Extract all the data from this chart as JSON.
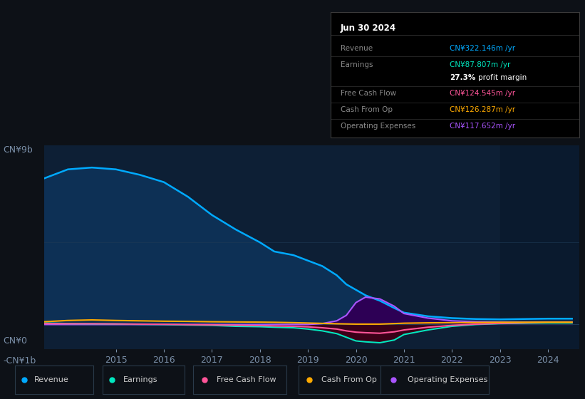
{
  "bg_color": "#0d1117",
  "plot_bg_color": "#0d1f35",
  "title": "Jun 30 2024",
  "ylabel_top": "CN¥9b",
  "ylabel_zero": "CN¥0",
  "ylabel_neg": "-CN¥1b",
  "x_years": [
    2013.5,
    2014.0,
    2014.5,
    2015.0,
    2015.5,
    2016.0,
    2016.5,
    2017.0,
    2017.5,
    2018.0,
    2018.3,
    2018.7,
    2019.0,
    2019.3,
    2019.6,
    2019.8,
    2020.0,
    2020.2,
    2020.5,
    2020.8,
    2021.0,
    2021.5,
    2022.0,
    2022.5,
    2023.0,
    2023.5,
    2024.0,
    2024.5
  ],
  "revenue": [
    8.0,
    8.5,
    8.6,
    8.5,
    8.2,
    7.8,
    7.0,
    6.0,
    5.2,
    4.5,
    4.0,
    3.8,
    3.5,
    3.2,
    2.7,
    2.2,
    1.9,
    1.6,
    1.3,
    0.9,
    0.65,
    0.45,
    0.35,
    0.3,
    0.28,
    0.3,
    0.32,
    0.32
  ],
  "earnings": [
    0.08,
    0.05,
    0.04,
    0.03,
    0.01,
    0.0,
    -0.03,
    -0.05,
    -0.1,
    -0.12,
    -0.15,
    -0.18,
    -0.25,
    -0.35,
    -0.5,
    -0.7,
    -0.9,
    -0.95,
    -1.0,
    -0.85,
    -0.55,
    -0.3,
    -0.1,
    0.0,
    0.05,
    0.07,
    0.088,
    0.088
  ],
  "free_cash_flow": [
    0.05,
    0.04,
    0.04,
    0.03,
    0.02,
    0.01,
    -0.01,
    -0.02,
    -0.04,
    -0.06,
    -0.08,
    -0.1,
    -0.13,
    -0.18,
    -0.25,
    -0.35,
    -0.42,
    -0.45,
    -0.48,
    -0.4,
    -0.3,
    -0.15,
    -0.05,
    0.02,
    0.06,
    0.09,
    0.125,
    0.125
  ],
  "cash_from_op": [
    0.15,
    0.22,
    0.25,
    0.22,
    0.2,
    0.18,
    0.17,
    0.15,
    0.14,
    0.13,
    0.12,
    0.1,
    0.08,
    0.06,
    0.04,
    0.03,
    0.02,
    0.02,
    0.02,
    0.05,
    0.07,
    0.09,
    0.1,
    0.11,
    0.12,
    0.123,
    0.126,
    0.126
  ],
  "operating_expenses": [
    0.0,
    0.0,
    0.0,
    0.0,
    0.0,
    0.0,
    0.0,
    0.0,
    0.0,
    0.0,
    0.0,
    0.0,
    0.0,
    0.05,
    0.2,
    0.5,
    1.2,
    1.5,
    1.4,
    1.0,
    0.6,
    0.35,
    0.2,
    0.15,
    0.13,
    0.12,
    0.118,
    0.118
  ],
  "revenue_color": "#00aaff",
  "revenue_fill": "#0d3055",
  "earnings_color": "#00e8c0",
  "earnings_neg_fill": "#3a0018",
  "earnings_pos_fill": "#003322",
  "free_cash_flow_color": "#ff5599",
  "free_cash_flow_neg_fill": "#3a0018",
  "cash_from_op_color": "#ffaa00",
  "op_expenses_color": "#aa55ff",
  "op_expenses_fill": "#2d0055",
  "legend": [
    {
      "label": "Revenue",
      "color": "#00aaff"
    },
    {
      "label": "Earnings",
      "color": "#00e8c0"
    },
    {
      "label": "Free Cash Flow",
      "color": "#ff5599"
    },
    {
      "label": "Cash From Op",
      "color": "#ffaa00"
    },
    {
      "label": "Operating Expenses",
      "color": "#aa55ff"
    }
  ],
  "xticks": [
    2015,
    2016,
    2017,
    2018,
    2019,
    2020,
    2021,
    2022,
    2023,
    2024
  ],
  "ylim": [
    -1.35,
    9.8
  ],
  "xlim": [
    2013.5,
    2024.65
  ],
  "grid_color": "#1e3a55",
  "tick_color": "#7a8fa8",
  "shade_start": 2023.0,
  "shade_end": 2024.65,
  "shade_color": "#0a1a2e",
  "info_rows": [
    {
      "label": "Revenue",
      "value": "CN¥322.146m /yr",
      "value_color": "#00aaff"
    },
    {
      "label": "Earnings",
      "value": "CN¥87.807m /yr",
      "value_color": "#00e8c0"
    },
    {
      "label": "",
      "value": "27.3% profit margin",
      "value_color": "#ffffff"
    },
    {
      "label": "Free Cash Flow",
      "value": "CN¥124.545m /yr",
      "value_color": "#ff5599"
    },
    {
      "label": "Cash From Op",
      "value": "CN¥126.287m /yr",
      "value_color": "#ffaa00"
    },
    {
      "label": "Operating Expenses",
      "value": "CN¥117.652m /yr",
      "value_color": "#aa55ff"
    }
  ]
}
